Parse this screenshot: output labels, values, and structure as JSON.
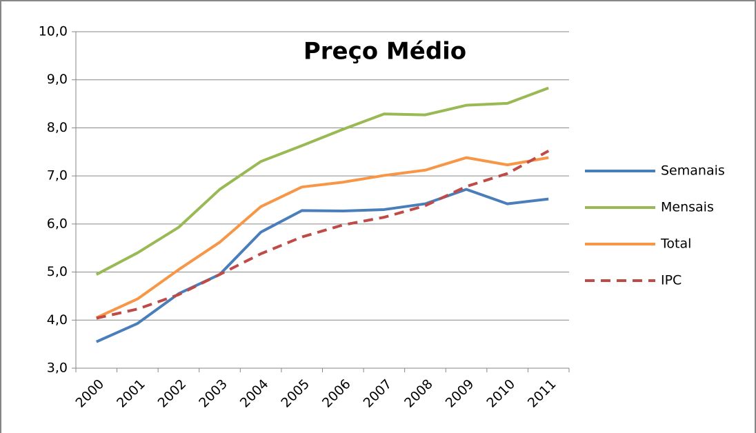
{
  "chart_data": {
    "type": "line",
    "title": "Preço Médio",
    "categories": [
      "2000",
      "2001",
      "2002",
      "2003",
      "2004",
      "2005",
      "2006",
      "2007",
      "2008",
      "2009",
      "2010",
      "2011"
    ],
    "series": [
      {
        "name": "Semanais",
        "color": "#4a7ebb",
        "values": [
          3.55,
          3.93,
          4.55,
          4.95,
          5.83,
          6.28,
          6.27,
          6.3,
          6.42,
          6.72,
          6.42,
          6.52
        ]
      },
      {
        "name": "Mensais",
        "color": "#98b954",
        "values": [
          4.95,
          5.4,
          5.93,
          6.72,
          7.3,
          7.63,
          7.97,
          8.29,
          8.27,
          8.47,
          8.51,
          8.83
        ]
      },
      {
        "name": "Total",
        "color": "#f79646",
        "values": [
          4.05,
          4.44,
          5.05,
          5.62,
          6.36,
          6.77,
          6.87,
          7.01,
          7.12,
          7.38,
          7.23,
          7.38
        ]
      },
      {
        "name": "IPC",
        "color": "#be4b48",
        "dashed": true,
        "values": [
          4.04,
          4.23,
          4.53,
          4.95,
          5.38,
          5.73,
          5.98,
          6.14,
          6.38,
          6.78,
          7.05,
          7.52
        ]
      }
    ],
    "ylim": [
      3,
      10
    ],
    "yticks": [
      {
        "value": 3,
        "label": "3,0"
      },
      {
        "value": 4,
        "label": "4,0"
      },
      {
        "value": 5,
        "label": "5,0"
      },
      {
        "value": 6,
        "label": "6,0"
      },
      {
        "value": 7,
        "label": "7,0"
      },
      {
        "value": 8,
        "label": "8,0"
      },
      {
        "value": 9,
        "label": "9,0"
      },
      {
        "value": 10,
        "label": "10,0"
      }
    ],
    "grid": true,
    "legend": "right"
  }
}
